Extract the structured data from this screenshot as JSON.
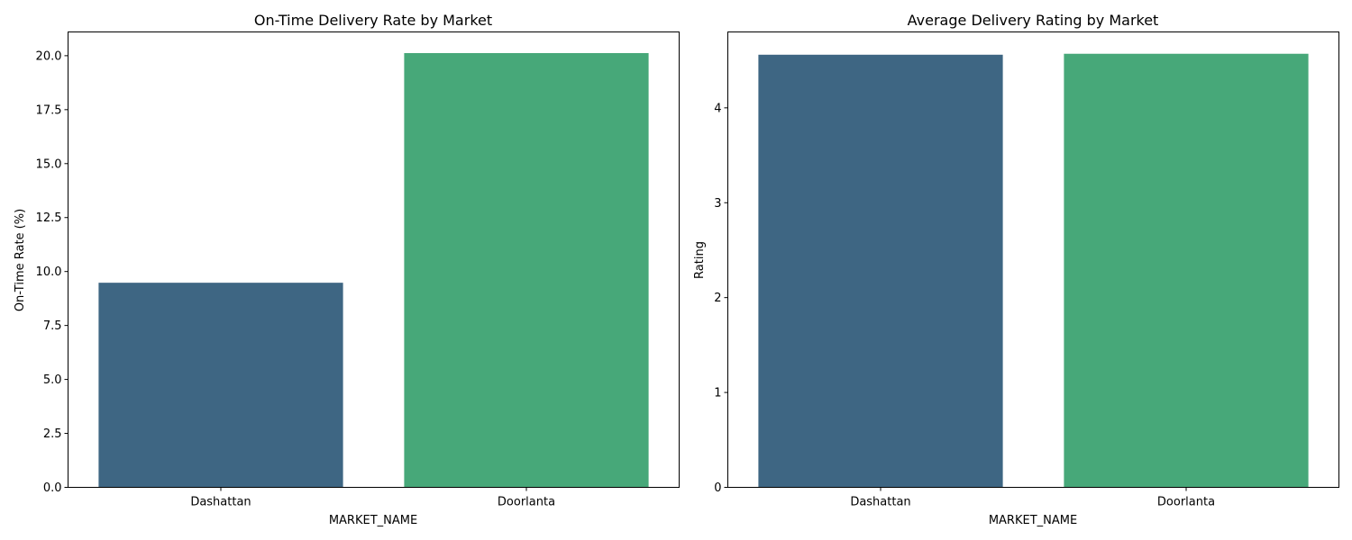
{
  "colors": {
    "Dashattan": "#3e6683",
    "Doorlanta": "#47a879"
  },
  "chart_data": [
    {
      "type": "bar",
      "title": "On-Time Delivery Rate by Market",
      "xlabel": "MARKET_NAME",
      "ylabel": "On-Time Rate (%)",
      "categories": [
        "Dashattan",
        "Doorlanta"
      ],
      "values": [
        9.48,
        20.12
      ],
      "ylim": [
        0,
        21.1
      ],
      "yticks": [
        0.0,
        2.5,
        5.0,
        7.5,
        10.0,
        12.5,
        15.0,
        17.5,
        20.0
      ],
      "ytick_labels": [
        "0.0",
        "2.5",
        "5.0",
        "7.5",
        "10.0",
        "12.5",
        "15.0",
        "17.5",
        "20.0"
      ],
      "grid": false,
      "legend": "none"
    },
    {
      "type": "bar",
      "title": "Average Delivery Rating by Market",
      "xlabel": "MARKET_NAME",
      "ylabel": "Rating",
      "categories": [
        "Dashattan",
        "Doorlanta"
      ],
      "values": [
        4.56,
        4.57
      ],
      "ylim": [
        0,
        4.8
      ],
      "yticks": [
        0,
        1,
        2,
        3,
        4
      ],
      "ytick_labels": [
        "0",
        "1",
        "2",
        "3",
        "4"
      ],
      "grid": false,
      "legend": "none"
    }
  ]
}
